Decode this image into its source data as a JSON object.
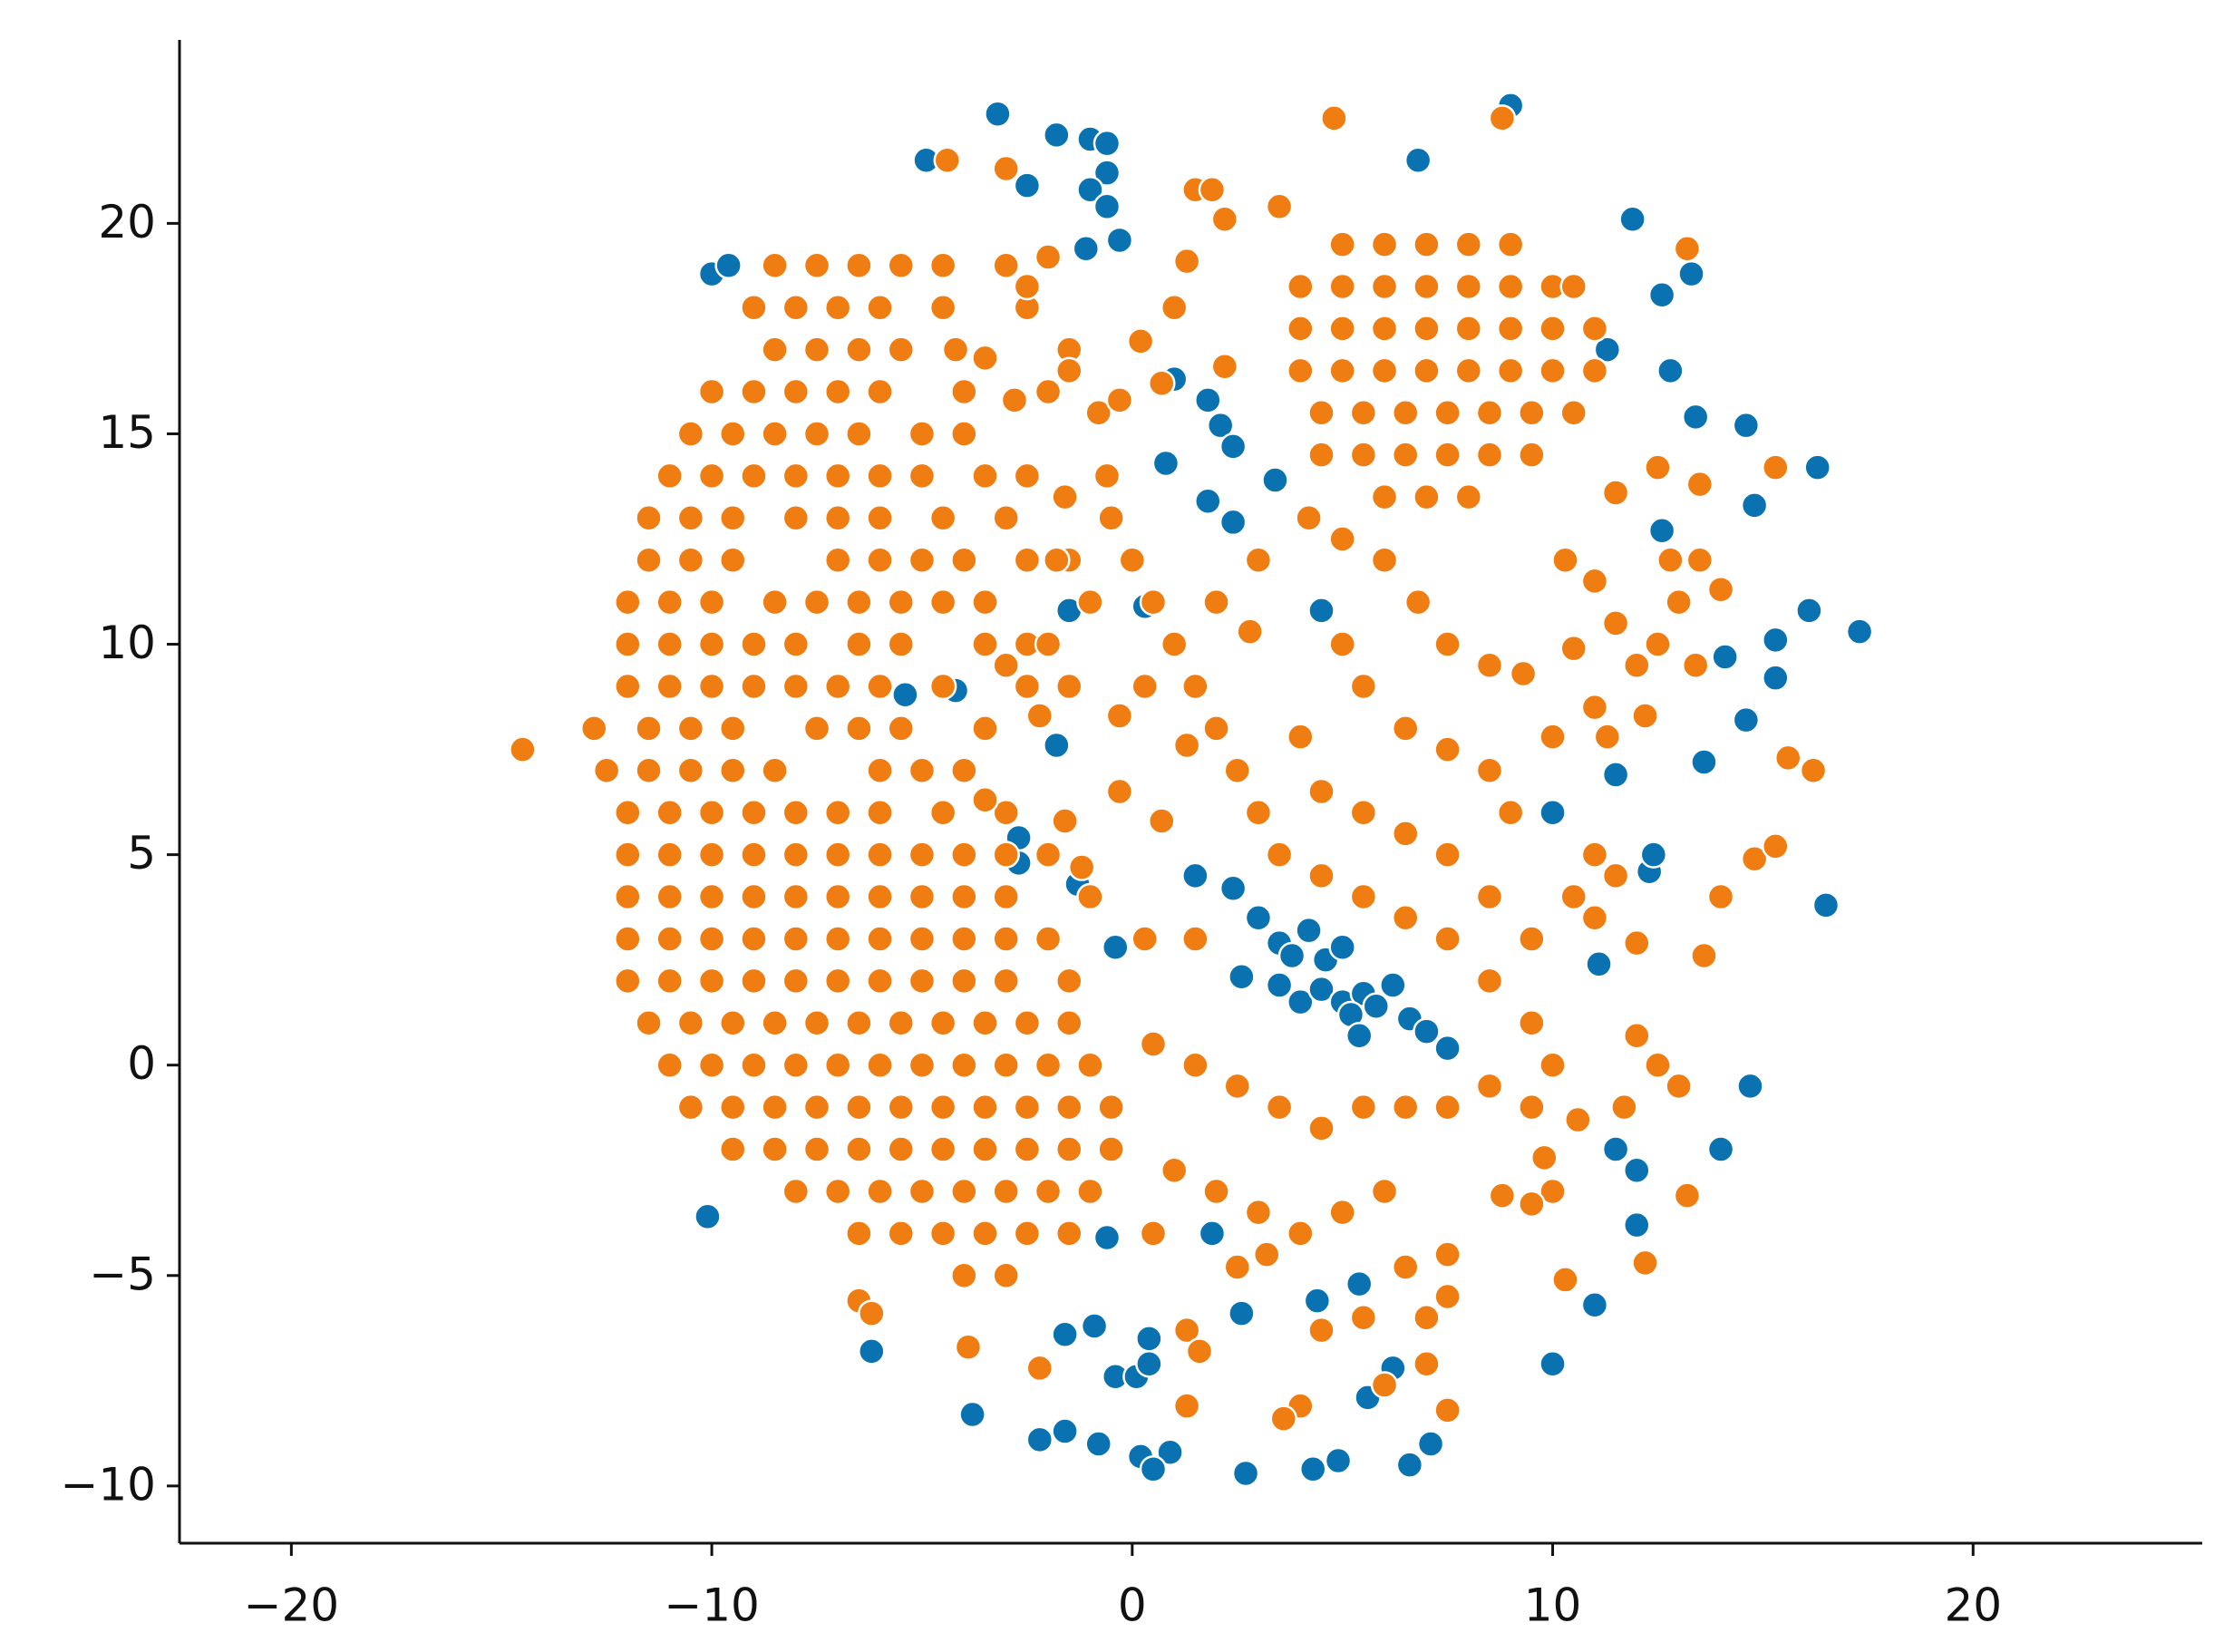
{
  "chart_data": {
    "type": "scatter",
    "xlim": [
      -22.66,
      25.45
    ],
    "ylim": [
      -11.36,
      24.36
    ],
    "xticks": [
      {
        "value": -20,
        "label": "−20"
      },
      {
        "value": -10,
        "label": "−10"
      },
      0,
      10,
      20
    ],
    "yticks": [
      {
        "value": -10,
        "label": "−10"
      },
      {
        "value": -5,
        "label": "−5"
      },
      0,
      5,
      10,
      15,
      20
    ],
    "grid": false,
    "series": [
      {
        "color": "#0a72b0",
        "x": [
          -3.2,
          -4.9,
          -1.8,
          -1,
          -0.6,
          -0.6,
          -2.5,
          -1,
          -0.6,
          -1.1,
          -0.3,
          -10,
          -9.6,
          6.8,
          9,
          11.9,
          12.6,
          13.3,
          11.3,
          12.8,
          13.4,
          14.6,
          16.3,
          14.8,
          12.6,
          15.3,
          16.1,
          17.3,
          14.1,
          15.3,
          14.6,
          13.6,
          11.5,
          10,
          1,
          1.8,
          2.1,
          2.4,
          0.8,
          3.4,
          1.8,
          2.4,
          -1.5,
          0.3,
          4.5,
          -4.2,
          -5.4,
          -1.8,
          -2.7,
          -2.7,
          -1.3,
          1.5,
          2.4,
          3,
          3.5,
          3.8,
          4.2,
          4.6,
          5,
          3.5,
          4,
          4.5,
          5,
          5.5,
          5.2,
          5.8,
          6.2,
          6.6,
          7,
          5.4,
          7.5,
          2.6,
          -0.4,
          -0.6,
          1.9,
          -10.1,
          11.5,
          12,
          14,
          14.7,
          12,
          11,
          10,
          4.4,
          5.4,
          2.6,
          -6.2,
          -1.6,
          -0.9,
          0.4,
          -0.4,
          0.1,
          0.4,
          6.2,
          5.6,
          -3.8,
          -2.2,
          -1.6,
          -0.8,
          0.2,
          0.9,
          0.5,
          2.7,
          4.3,
          4.9,
          6.6,
          7.1,
          16.5,
          12.3,
          12.4,
          11.1
        ],
        "values": [
          22.6,
          21.5,
          22.1,
          22,
          21.9,
          21.2,
          20.9,
          20.8,
          20.4,
          19.4,
          19.6,
          18.8,
          19,
          21.5,
          22.8,
          20.1,
          18.3,
          18.8,
          17,
          16.5,
          15.4,
          15.2,
          14.2,
          13.3,
          12.7,
          10.1,
          10.8,
          10.3,
          9.7,
          9.2,
          8.2,
          7.2,
          6.9,
          6,
          16.3,
          15.8,
          15.2,
          14.7,
          14.3,
          13.9,
          13.4,
          12.9,
          10.8,
          10.9,
          10.8,
          8.9,
          8.8,
          7.6,
          5.4,
          4.8,
          4.3,
          4.5,
          4.2,
          3.5,
          2.9,
          2.6,
          3.2,
          2.5,
          2.8,
          1.9,
          1.5,
          1.8,
          1.5,
          1.7,
          1.2,
          1.4,
          1.9,
          1.1,
          0.8,
          0.7,
          0.4,
          2.1,
          2.8,
          -4.1,
          -4,
          -3.6,
          -2,
          -2.5,
          -2,
          -0.5,
          -3.8,
          -5.7,
          -7.1,
          -5.6,
          -5.2,
          -5.9,
          -6.8,
          -6.4,
          -6.2,
          -6.5,
          -7.4,
          -7.4,
          -7.1,
          -7.2,
          -7.9,
          -8.3,
          -8.9,
          -8.7,
          -9,
          -9.3,
          -9.2,
          -9.6,
          -9.7,
          -9.6,
          -9.4,
          -9.5,
          -9,
          3.8,
          4.6,
          5,
          2.4
        ]
      },
      {
        "color": "#ef7d12",
        "x": [
          -8.5,
          -7.5,
          -6.5,
          -5.5,
          -4.5,
          -3,
          -9,
          -8,
          -7,
          -6,
          -4.5,
          -2.5,
          -8.5,
          -7.5,
          -6.5,
          -5.5,
          -4.2,
          -1.5,
          -10,
          -9,
          -8,
          -7,
          -6,
          -4,
          -2,
          -10.5,
          -9.5,
          -8.5,
          -7.5,
          -6.5,
          -5,
          -4,
          -11,
          -10,
          -9,
          -8,
          -7,
          -6,
          -5,
          -3.5,
          -11.5,
          -10.5,
          -9.5,
          -8,
          -7,
          -6,
          -4.5,
          -3,
          -11.5,
          -10.5,
          -9.5,
          -7,
          -6,
          -5,
          -4,
          -2.5,
          -1.5,
          -12,
          -11,
          -10,
          -8.5,
          -7.5,
          -6.5,
          -5.5,
          -4.5,
          -3.5,
          -12,
          -11,
          -10,
          -9,
          -8,
          -6.5,
          -5.5,
          -3.5,
          -2.5,
          -12,
          -11,
          -10,
          -9,
          -8,
          -7,
          -6,
          -4.5,
          -2.5,
          -1.5,
          -12.8,
          -11.5,
          -10.5,
          -9.5,
          -7.5,
          -6.5,
          -5.5,
          -3.5,
          -14.5,
          -12.5,
          -11.5,
          -10.5,
          -9.5,
          -8.5,
          -6,
          -5,
          -4,
          -12,
          -11,
          -10,
          -9,
          -8,
          -7,
          -6,
          -4.5,
          -3,
          -12,
          -11,
          -10,
          -9,
          -8,
          -7,
          -6,
          -5,
          -4,
          -3,
          -2,
          -12,
          -11,
          -10,
          -9,
          -8,
          -7,
          -6,
          -5,
          -4,
          -3,
          -1,
          -12,
          -11,
          -10,
          -9,
          -8,
          -7,
          -6,
          -5,
          -4,
          -3,
          -2,
          -12,
          -11,
          -10,
          -9,
          -8,
          -7,
          -6,
          -5,
          -4,
          -3,
          -1.5,
          -11.5,
          -10.5,
          -9.5,
          -8.5,
          -7.5,
          -6.5,
          -5.5,
          -4.5,
          -3.5,
          -2.5,
          -1.5,
          -11,
          -10,
          -9,
          -8,
          -7,
          -6,
          -5,
          -4,
          -3,
          -2,
          -1,
          -10.5,
          -9.5,
          -8.5,
          -7.5,
          -6.5,
          -5.5,
          -4.5,
          -3.5,
          -2.5,
          -1.5,
          -0.5,
          -9.5,
          -8.5,
          -7.5,
          -6.5,
          -5.5,
          -4.5,
          -3.5,
          -2.5,
          -1.5,
          -0.5,
          -8,
          -7,
          -6,
          -5,
          -4,
          -3,
          -2,
          -1,
          -6.5,
          -5.5,
          -4.5,
          -3.5,
          -2.5,
          -1.5,
          -4,
          -3,
          5,
          6,
          7,
          8,
          9,
          4,
          5,
          6,
          7,
          8,
          9,
          10,
          10.5,
          4,
          5,
          6,
          7,
          8,
          9,
          10,
          11,
          4,
          5,
          6,
          7,
          8,
          9,
          10,
          11,
          4.5,
          5.5,
          6.5,
          7.5,
          8.5,
          9.5,
          10.5,
          4.5,
          5.5,
          6.5,
          7.5,
          8.5,
          9.5,
          6,
          7,
          8,
          -6.5,
          -6.2,
          -3.9,
          -2.2,
          4.8,
          8.8,
          -1.5,
          -0.8,
          -0.6,
          -0.5,
          0,
          0.5,
          1,
          1.5,
          2,
          2.5,
          3,
          3.5,
          4.5,
          5.5,
          6.5,
          7.5,
          8.5,
          9.5,
          10,
          9.5,
          9.8,
          10,
          1.5,
          2.2,
          1.3,
          1,
          0.2,
          3.5,
          2,
          2.8,
          3,
          4.2,
          5,
          6,
          6.8,
          7.5,
          8.5,
          9.3,
          5,
          5.5,
          6.5,
          7.5,
          8.5,
          9,
          4,
          4.5,
          5.5,
          6.5,
          7.5,
          8.5,
          9.5,
          0.5,
          1.5,
          2.5,
          3.5,
          4.5,
          5.5,
          6.5,
          7.5,
          8.5,
          1,
          2,
          3,
          4,
          5,
          6,
          0.5,
          2.5,
          3.2,
          6.5,
          7.5,
          5.5,
          7,
          7.5,
          6,
          7,
          7.5,
          4,
          3.6,
          4.5,
          1.3,
          1.6,
          1.3,
          0.7,
          1.5,
          0.3,
          -1.2,
          -1.6,
          -0.3,
          -0.3,
          0.3,
          1.3,
          -1.8,
          -1,
          -2,
          -3,
          -2.2,
          -3.5,
          2.2,
          0.7,
          -0.3,
          -1.6,
          -2.5,
          -2.8,
          -3.5,
          -2.5,
          -2,
          -4.4,
          -3,
          1.9,
          10.3,
          11,
          11.5,
          12,
          12.5,
          13,
          13.5,
          12.5,
          11.5,
          13.5,
          14,
          13.4,
          11,
          10.5,
          11.3,
          10,
          11,
          11.5,
          10.5,
          11,
          12,
          12,
          12.5,
          13,
          11.7,
          10.6,
          10.3,
          12.2,
          13.2,
          13.6,
          14,
          14.8,
          15.3,
          15.6,
          16.2,
          15.3,
          13.2,
          9.5,
          8.8,
          12.2,
          12.8
        ],
        "values": [
          19,
          19,
          19,
          19,
          19,
          19,
          18,
          18,
          18,
          18,
          18,
          18,
          17,
          17,
          17,
          17,
          17,
          17,
          16,
          16,
          16,
          16,
          16,
          16,
          16,
          15,
          15,
          15,
          15,
          15,
          15,
          15,
          14,
          14,
          14,
          14,
          14,
          14,
          14,
          14,
          13,
          13,
          13,
          13,
          13,
          13,
          13,
          13,
          12,
          12,
          12,
          12,
          12,
          12,
          12,
          12,
          12,
          11,
          11,
          11,
          11,
          11,
          11,
          11,
          11,
          11,
          10,
          10,
          10,
          10,
          10,
          10,
          10,
          10,
          10,
          9,
          9,
          9,
          9,
          9,
          9,
          9,
          9,
          9,
          9,
          8,
          8,
          8,
          8,
          8,
          8,
          8,
          8,
          7.5,
          7,
          7,
          7,
          7,
          7,
          7,
          7,
          7,
          6,
          6,
          6,
          6,
          6,
          6,
          6,
          6,
          6,
          5,
          5,
          5,
          5,
          5,
          5,
          5,
          5,
          5,
          5,
          5,
          4,
          4,
          4,
          4,
          4,
          4,
          4,
          4,
          4,
          4,
          4,
          3,
          3,
          3,
          3,
          3,
          3,
          3,
          3,
          3,
          3,
          3,
          2,
          2,
          2,
          2,
          2,
          2,
          2,
          2,
          2,
          2,
          2,
          1,
          1,
          1,
          1,
          1,
          1,
          1,
          1,
          1,
          1,
          1,
          0,
          0,
          0,
          0,
          0,
          0,
          0,
          0,
          0,
          0,
          0,
          -1,
          -1,
          -1,
          -1,
          -1,
          -1,
          -1,
          -1,
          -1,
          -1,
          -1,
          -2,
          -2,
          -2,
          -2,
          -2,
          -2,
          -2,
          -2,
          -2,
          -2,
          -3,
          -3,
          -3,
          -3,
          -3,
          -3,
          -3,
          -3,
          -4,
          -4,
          -4,
          -4,
          -4,
          -4,
          -5,
          -5,
          19.5,
          19.5,
          19.5,
          19.5,
          19.5,
          18.5,
          18.5,
          18.5,
          18.5,
          18.5,
          18.5,
          18.5,
          18.5,
          17.5,
          17.5,
          17.5,
          17.5,
          17.5,
          17.5,
          17.5,
          17.5,
          16.5,
          16.5,
          16.5,
          16.5,
          16.5,
          16.5,
          16.5,
          16.5,
          15.5,
          15.5,
          15.5,
          15.5,
          15.5,
          15.5,
          15.5,
          14.5,
          14.5,
          14.5,
          14.5,
          14.5,
          14.5,
          13.5,
          13.5,
          13.5,
          -5.6,
          -5.9,
          -6.7,
          -7.2,
          22.5,
          22.5,
          16.5,
          15.5,
          14,
          13,
          12,
          11,
          10,
          9,
          8,
          7,
          6,
          5,
          4.5,
          4,
          3.5,
          3,
          2,
          1,
          0,
          -1,
          -2.2,
          -3,
          20.8,
          20.1,
          19.1,
          18,
          17.2,
          20.4,
          11,
          10.3,
          12,
          13,
          12.5,
          12,
          11,
          10,
          9.5,
          9.3,
          10,
          9,
          8,
          7.5,
          7,
          6,
          7.8,
          6.5,
          6,
          5.5,
          5,
          4,
          3,
          0.5,
          0,
          -0.5,
          -1,
          -1.5,
          -1,
          -1,
          -1,
          -0.5,
          -2.5,
          -3,
          -3.5,
          -4,
          -3.5,
          -3,
          -4,
          -4.8,
          -4.5,
          -4.8,
          -4.5,
          -6,
          -6,
          -5.5,
          -7.6,
          -7.1,
          -8.2,
          -8.1,
          -8.4,
          -6.3,
          -6.3,
          -6.8,
          -8.1,
          5.8,
          3,
          3,
          4.7,
          5.8,
          6.5,
          8.3,
          9,
          7.6,
          12,
          11,
          10,
          9.5,
          8.3,
          6.3,
          16.6,
          16.2,
          15.8,
          13.5,
          14,
          15.8,
          16.8,
          18.5,
          19.2,
          21.5,
          21.3,
          20.8,
          12,
          11.5,
          10.5,
          9.5,
          10,
          11,
          12,
          14.2,
          13.6,
          13.8,
          11.3,
          9.5,
          8.5,
          9.9,
          7.8,
          7.8,
          5,
          4.5,
          4,
          3.5,
          2.9,
          0.7,
          0,
          -0.5,
          -1,
          -1.3,
          -5.1,
          -4.7,
          -3.1,
          2.6,
          4,
          4.9,
          5.2,
          7.3,
          7,
          14.2,
          19.4,
          -3.3,
          -3.1,
          8.3,
          12
        ]
      }
    ]
  }
}
